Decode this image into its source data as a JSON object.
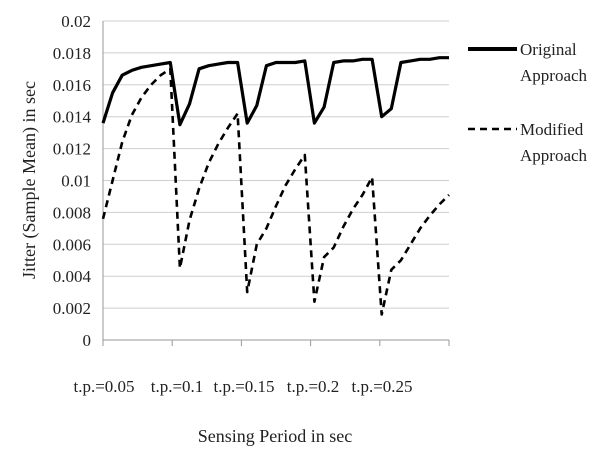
{
  "chart_data": {
    "type": "line",
    "title": "",
    "xlabel": "Sensing Period in sec",
    "ylabel": "Jitter (Sample Mean) in sec",
    "ylim": [
      0,
      0.02
    ],
    "yticks": [
      "0",
      "0.002",
      "0.004",
      "0.006",
      "0.008",
      "0.01",
      "0.012",
      "0.014",
      "0.016",
      "0.018",
      "0.02"
    ],
    "xtick_labels": [
      "t.p.=0.05",
      "t.p.=0.1",
      "t.p.=0.15",
      "t.p.=0.2",
      "t.p.=0.25"
    ],
    "grid": "horizontal",
    "legend_position": "right",
    "series": [
      {
        "name": "Original Approach",
        "name_lines": [
          "Original",
          "Approach"
        ],
        "style": "solid",
        "color": "#000000",
        "values": [
          0.0136,
          0.0155,
          0.0166,
          0.0169,
          0.0171,
          0.0172,
          0.0173,
          0.0174,
          0.0135,
          0.0148,
          0.017,
          0.0172,
          0.0173,
          0.0174,
          0.0174,
          0.0136,
          0.0147,
          0.0172,
          0.0174,
          0.0174,
          0.0174,
          0.0175,
          0.0136,
          0.0146,
          0.0174,
          0.0175,
          0.0175,
          0.0176,
          0.0176,
          0.014,
          0.0145,
          0.0174,
          0.0175,
          0.0176,
          0.0176,
          0.0177,
          0.0177
        ]
      },
      {
        "name": "Modified Approach",
        "name_lines": [
          "Modified",
          "Approach"
        ],
        "style": "dashed",
        "color": "#000000",
        "values": [
          0.0076,
          0.01,
          0.0124,
          0.0141,
          0.0152,
          0.016,
          0.0166,
          0.017,
          0.0045,
          0.0075,
          0.0095,
          0.0111,
          0.0123,
          0.0133,
          0.0142,
          0.003,
          0.006,
          0.007,
          0.0084,
          0.0097,
          0.0107,
          0.0116,
          0.0024,
          0.0052,
          0.0058,
          0.0071,
          0.0082,
          0.0091,
          0.0102,
          0.0016,
          0.0044,
          0.005,
          0.006,
          0.007,
          0.0078,
          0.0085,
          0.0091
        ]
      }
    ]
  }
}
